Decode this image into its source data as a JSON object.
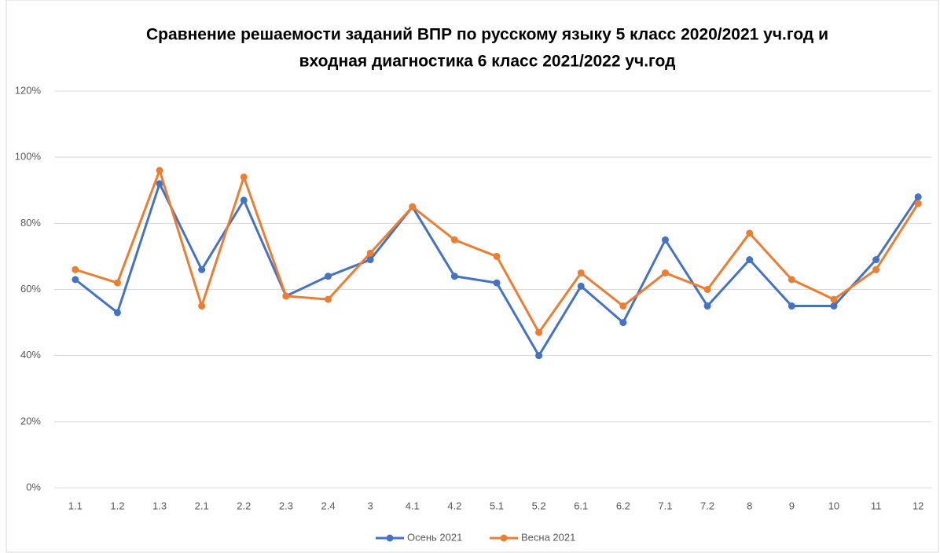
{
  "chart_data": {
    "type": "line",
    "title": [
      "Сравнение решаемости заданий ВПР по русскому языку 5 класс 2020/2021 уч.год и",
      "входная диагностика 6 класс 2021/2022 уч.год"
    ],
    "categories": [
      "1.1",
      "1.2",
      "1.3",
      "2.1",
      "2.2",
      "2.3",
      "2.4",
      "3",
      "4.1",
      "4.2",
      "5.1",
      "5.2",
      "6.1",
      "6.2",
      "7.1",
      "7.2",
      "8",
      "9",
      "10",
      "11",
      "12"
    ],
    "series": [
      {
        "name": "Осень 2021",
        "color": "#4472c4",
        "values": [
          63,
          53,
          92,
          66,
          87,
          58,
          64,
          69,
          85,
          64,
          62,
          40,
          61,
          50,
          75,
          55,
          69,
          55,
          55,
          69,
          88
        ]
      },
      {
        "name": "Весна 2021",
        "color": "#ed7d31",
        "values": [
          66,
          62,
          96,
          55,
          94,
          58,
          57,
          71,
          85,
          75,
          70,
          47,
          65,
          55,
          65,
          60,
          77,
          63,
          57,
          66,
          86
        ]
      }
    ],
    "ylim": [
      0,
      120
    ],
    "yticks": [
      {
        "value": 0,
        "label": "0%"
      },
      {
        "value": 20,
        "label": "20%"
      },
      {
        "value": 40,
        "label": "40%"
      },
      {
        "value": 60,
        "label": "60%"
      },
      {
        "value": 80,
        "label": "80%"
      },
      {
        "value": 100,
        "label": "100%"
      },
      {
        "value": 120,
        "label": "120%"
      }
    ],
    "grid": true,
    "legend": "bottom"
  }
}
